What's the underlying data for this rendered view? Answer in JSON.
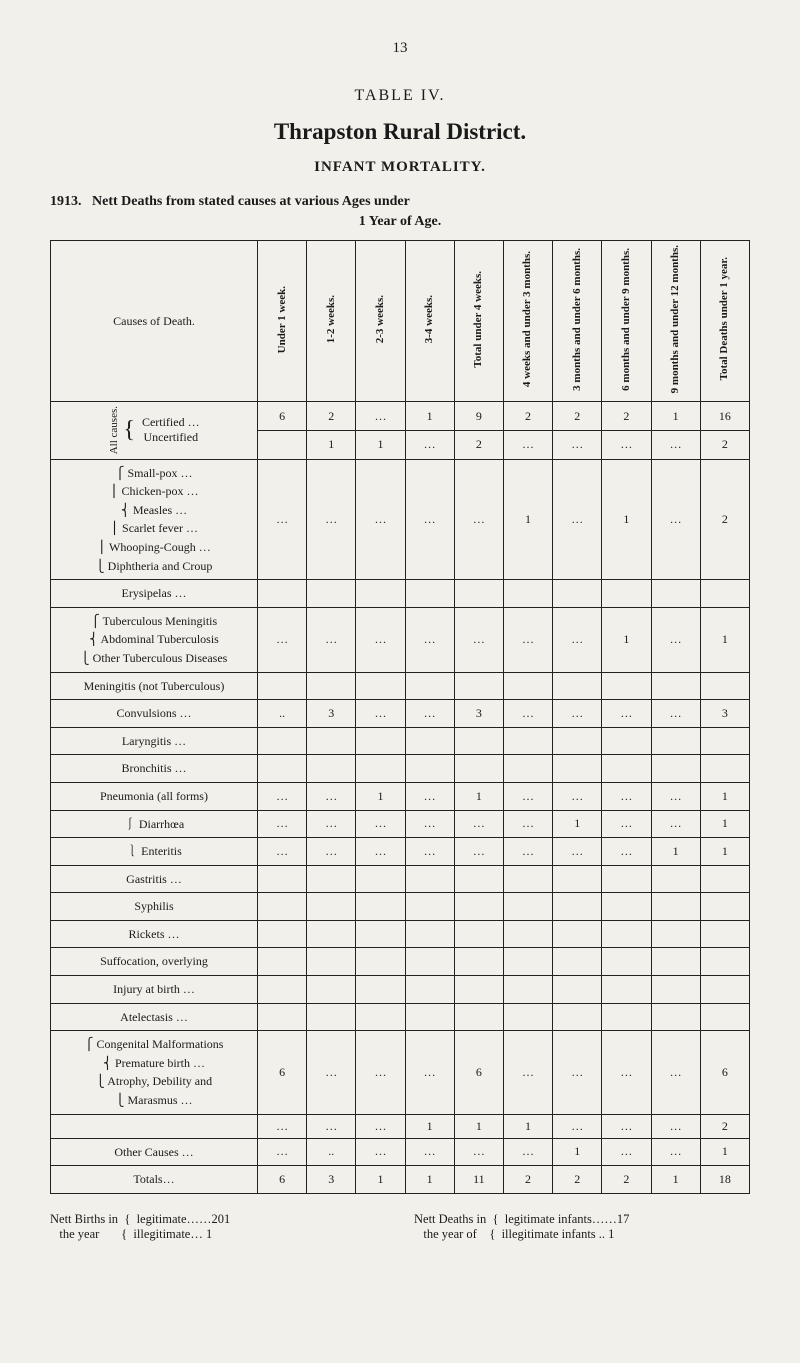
{
  "page_number": "13",
  "table_label": "TABLE IV.",
  "district_title": "Thrapston Rural District.",
  "subtitle": "INFANT MORTALITY.",
  "year": "1913.",
  "heading_line": "Nett Deaths from stated causes at various Ages under",
  "heading_sub": "1 Year of Age.",
  "columns": {
    "causes": "Causes of Death.",
    "c1": "Under 1 week.",
    "c2": "1-2 weeks.",
    "c3": "2-3 weeks.",
    "c4": "3-4 weeks.",
    "c5": "Total under 4 weeks.",
    "c6": "4 weeks and under 3 months.",
    "c7": "3 months and under 6 months.",
    "c8": "6 months and under 9 months.",
    "c9": "9 months and under 12 months.",
    "c10": "Total Deaths under 1 year."
  },
  "all_causes_label": "All causes.",
  "certified": {
    "label": "Certified …",
    "c1": "6",
    "c2": "2",
    "c3": "…",
    "c4": "1",
    "c5": "9",
    "c6": "2",
    "c7": "2",
    "c8": "2",
    "c9": "1",
    "c10": "16"
  },
  "uncertified": {
    "label": "Uncertified",
    "c1": "",
    "c2": "1",
    "c3": "1",
    "c4": "…",
    "c5": "2",
    "c6": "…",
    "c7": "…",
    "c8": "…",
    "c9": "…",
    "c10": "2"
  },
  "causes_block1": "⎧ Small-pox …\n⎪ Chicken-pox …\n⎨ Measles …\n⎪ Scarlet fever …\n⎪ Whooping-Cough …\n⎩ Diphtheria and Croup",
  "row_whooping": {
    "c6": "1",
    "c8": "1",
    "c10": "2"
  },
  "erysipelas": "  Erysipelas …",
  "causes_block2": "⎧ Tuberculous Meningitis\n⎨ Abdominal Tuberculosis\n⎩ Other Tuberculous Diseases",
  "row_tb": {
    "c8": "1",
    "c10": "1"
  },
  "meningitis": "  Meningitis (not Tuberculous)",
  "convulsions": {
    "label": "  Convulsions …",
    "c2": "3",
    "c5": "3",
    "c10": "3"
  },
  "laryngitis": "  Laryngitis …",
  "bronchitis": "  Bronchitis …",
  "pneumonia": {
    "label": "  Pneumonia (all forms)",
    "c3": "1",
    "c5": "1",
    "c10": "1"
  },
  "diarrhoea": {
    "label": "⎰ Diarrhœa",
    "c7": "1",
    "c10": "1"
  },
  "enteritis": {
    "label": "⎱ Enteritis",
    "c9": "1",
    "c10": "1"
  },
  "gastritis": "  Gastritis …",
  "syphilis": "  Syphilis",
  "rickets": "  Rickets …",
  "suffocation": "  Suffocation, overlying",
  "injury": "  Injury at birth …",
  "atelectasis": "  Atelectasis …",
  "causes_block3": "⎧ Congenital Malformations\n⎨ Premature birth …\n⎩ Atrophy, Debility and\n⎩   Marasmus …",
  "row_premature": {
    "c1": "6",
    "c5": "6",
    "c10": "6"
  },
  "row_marasmus": {
    "c4": "1",
    "c5": "1",
    "c6": "1",
    "c10": "2"
  },
  "other_causes": {
    "label": "  Other Causes …",
    "c7": "1",
    "c10": "1"
  },
  "totals": {
    "label": "Totals…",
    "c1": "6",
    "c2": "3",
    "c3": "1",
    "c4": "1",
    "c5": "11",
    "c6": "2",
    "c7": "2",
    "c8": "2",
    "c9": "1",
    "c10": "18"
  },
  "footer": {
    "births_label": "Nett Births in",
    "births_sub": "the year",
    "legitimate_births": "legitimate……201",
    "illegitimate_births": "illegitimate…   1",
    "deaths_label": "Nett Deaths in",
    "deaths_sub": "the year of",
    "legitimate_infants": "legitimate infants……17",
    "illegitimate_infants": "illegitimate infants ..  1"
  }
}
